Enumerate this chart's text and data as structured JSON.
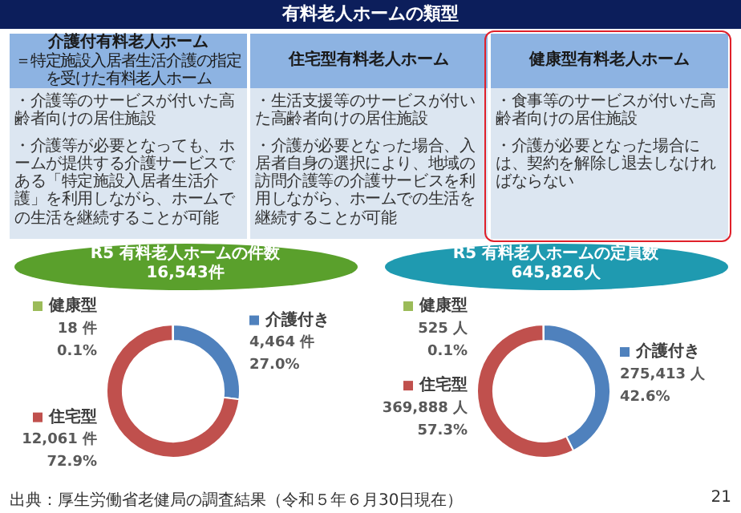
{
  "chart_data": [
    {
      "type": "other",
      "title": "有料老人ホームの類型"
    },
    {
      "type": "other",
      "title": "介護付有料老人ホーム",
      "subtitle": "＝特定施設入居者生活介護の指定を受けた有料老人ホーム",
      "annotations": [
        "・介護等のサービスが付いた高齢者向けの居住施設",
        "・介護等が必要となっても、ホームが提供する介護サービスである「特定施設入居者生活介護」を利用しながら、ホームでの生活を継続することが可能"
      ]
    },
    {
      "type": "other",
      "title": "住宅型有料老人ホーム",
      "annotations": [
        "・生活支援等のサービスが付いた高齢者向けの居住施設",
        "・介護が必要となった場合、入居者自身の選択により、地域の訪問介護等の介護サービスを利用しながら、ホームでの生活を継続することが可能"
      ]
    },
    {
      "type": "other",
      "title": "健康型有料老人ホーム",
      "annotations": [
        "・食事等のサービスが付いた高齢者向けの居住施設",
        "・介護が必要となった場合には、契約を解除し退去しなければならない"
      ]
    },
    {
      "type": "donut",
      "title": "R5 有料老人ホームの件数",
      "subtitle": "16,543件",
      "categories": [
        "介護付き",
        "住宅型",
        "健康型"
      ],
      "values": [
        4464,
        12061,
        18
      ],
      "legend": "left",
      "colors": [
        "#4f81bd",
        "#c0504d",
        "#9bbb59"
      ],
      "value_labels": [
        "4,464 件\n27.0%",
        "12,061 件\n72.9%",
        "18 件\n0.1%"
      ]
    },
    {
      "type": "donut",
      "title": "R5 有料老人ホームの定員数",
      "subtitle": "645,826人",
      "categories": [
        "介護付き",
        "住宅型",
        "健康型"
      ],
      "values": [
        275413,
        369888,
        525
      ],
      "legend": "left",
      "colors": [
        "#4f81bd",
        "#c0504d",
        "#9bbb59"
      ],
      "value_labels": [
        "275,413 人\n42.6%",
        "369,888 人\n57.3%",
        "525 人\n0.1%"
      ],
      "annotations": [
        "出典：厚生労働省老健局の調査結果（令和５年６月30日現在）",
        "21"
      ]
    }
  ]
}
